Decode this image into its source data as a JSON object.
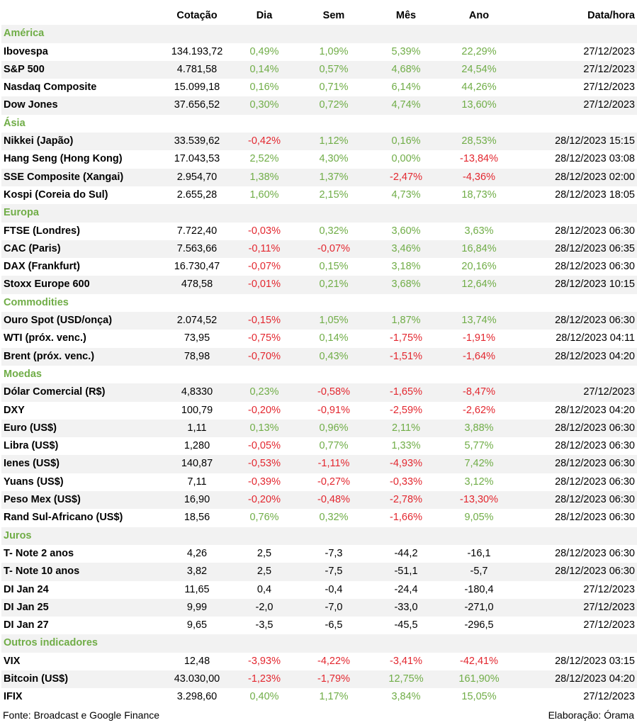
{
  "colors": {
    "positive": "#70ad47",
    "negative": "#e3272f",
    "section": "#70ad47",
    "stripe": "#f2f2f2"
  },
  "headers": [
    "",
    "Cotação",
    "Dia",
    "Sem",
    "Mês",
    "Ano",
    "Data/hora"
  ],
  "sections": [
    {
      "title": "América",
      "rows": [
        {
          "name": "Ibovespa",
          "cotacao": "134.193,72",
          "dia": "0,49%",
          "sem": "1,09%",
          "mes": "5,39%",
          "ano": "22,29%",
          "data": "27/12/2023"
        },
        {
          "name": "S&P 500",
          "cotacao": "4.781,58",
          "dia": "0,14%",
          "sem": "0,57%",
          "mes": "4,68%",
          "ano": "24,54%",
          "data": "27/12/2023"
        },
        {
          "name": "Nasdaq Composite",
          "cotacao": "15.099,18",
          "dia": "0,16%",
          "sem": "0,71%",
          "mes": "6,14%",
          "ano": "44,26%",
          "data": "27/12/2023"
        },
        {
          "name": "Dow Jones",
          "cotacao": "37.656,52",
          "dia": "0,30%",
          "sem": "0,72%",
          "mes": "4,74%",
          "ano": "13,60%",
          "data": "27/12/2023"
        }
      ]
    },
    {
      "title": "Ásia",
      "rows": [
        {
          "name": "Nikkei (Japão)",
          "cotacao": "33.539,62",
          "dia": "-0,42%",
          "sem": "1,12%",
          "mes": "0,16%",
          "ano": "28,53%",
          "data": "28/12/2023 15:15"
        },
        {
          "name": "Hang Seng (Hong Kong)",
          "cotacao": "17.043,53",
          "dia": "2,52%",
          "sem": "4,30%",
          "mes": "0,00%",
          "ano": "-13,84%",
          "data": "28/12/2023 03:08"
        },
        {
          "name": "SSE Composite (Xangai)",
          "cotacao": "2.954,70",
          "dia": "1,38%",
          "sem": "1,37%",
          "mes": "-2,47%",
          "ano": "-4,36%",
          "data": "28/12/2023 02:00"
        },
        {
          "name": "Kospi (Coreia do Sul)",
          "cotacao": "2.655,28",
          "dia": "1,60%",
          "sem": "2,15%",
          "mes": "4,73%",
          "ano": "18,73%",
          "data": "28/12/2023 18:05"
        }
      ]
    },
    {
      "title": "Europa",
      "rows": [
        {
          "name": "FTSE (Londres)",
          "cotacao": "7.722,40",
          "dia": "-0,03%",
          "sem": "0,32%",
          "mes": "3,60%",
          "ano": "3,63%",
          "data": "28/12/2023 06:30"
        },
        {
          "name": "CAC (Paris)",
          "cotacao": "7.563,66",
          "dia": "-0,11%",
          "sem": "-0,07%",
          "mes": "3,46%",
          "ano": "16,84%",
          "data": "28/12/2023 06:35"
        },
        {
          "name": "DAX (Frankfurt)",
          "cotacao": "16.730,47",
          "dia": "-0,07%",
          "sem": "0,15%",
          "mes": "3,18%",
          "ano": "20,16%",
          "data": "28/12/2023 06:30"
        },
        {
          "name": "Stoxx Europe 600",
          "cotacao": "478,58",
          "dia": "-0,01%",
          "sem": "0,21%",
          "mes": "3,68%",
          "ano": "12,64%",
          "data": "28/12/2023 10:15"
        }
      ]
    },
    {
      "title": "Commodities",
      "rows": [
        {
          "name": "Ouro Spot (USD/onça)",
          "cotacao": "2.074,52",
          "dia": "-0,15%",
          "sem": "1,05%",
          "mes": "1,87%",
          "ano": "13,74%",
          "data": "28/12/2023 06:30"
        },
        {
          "name": "WTI (próx. venc.)",
          "cotacao": "73,95",
          "dia": "-0,75%",
          "sem": "0,14%",
          "mes": "-1,75%",
          "ano": "-1,91%",
          "data": "28/12/2023 04:11"
        },
        {
          "name": "Brent (próx. venc.)",
          "cotacao": "78,98",
          "dia": "-0,70%",
          "sem": "0,43%",
          "mes": "-1,51%",
          "ano": "-1,64%",
          "data": "28/12/2023 04:20"
        }
      ]
    },
    {
      "title": "Moedas",
      "rows": [
        {
          "name": "Dólar Comercial (R$)",
          "cotacao": "4,8330",
          "dia": "0,23%",
          "sem": "-0,58%",
          "mes": "-1,65%",
          "ano": "-8,47%",
          "data": "27/12/2023"
        },
        {
          "name": "DXY",
          "cotacao": "100,79",
          "dia": "-0,20%",
          "sem": "-0,91%",
          "mes": "-2,59%",
          "ano": "-2,62%",
          "data": "28/12/2023 04:20"
        },
        {
          "name": "Euro (US$)",
          "cotacao": "1,11",
          "dia": "0,13%",
          "sem": "0,96%",
          "mes": "2,11%",
          "ano": "3,88%",
          "data": "28/12/2023 06:30"
        },
        {
          "name": "Libra (US$)",
          "cotacao": "1,280",
          "dia": "-0,05%",
          "sem": "0,77%",
          "mes": "1,33%",
          "ano": "5,77%",
          "data": "28/12/2023 06:30"
        },
        {
          "name": "Ienes (US$)",
          "cotacao": "140,87",
          "dia": "-0,53%",
          "sem": "-1,11%",
          "mes": "-4,93%",
          "ano": "7,42%",
          "data": "28/12/2023 06:30"
        },
        {
          "name": "Yuans (US$)",
          "cotacao": "7,11",
          "dia": "-0,39%",
          "sem": "-0,27%",
          "mes": "-0,33%",
          "ano": "3,12%",
          "data": "28/12/2023 06:30"
        },
        {
          "name": "Peso Mex (US$)",
          "cotacao": "16,90",
          "dia": "-0,20%",
          "sem": "-0,48%",
          "mes": "-2,78%",
          "ano": "-13,30%",
          "data": "28/12/2023 06:30"
        },
        {
          "name": "Rand Sul-Africano (US$)",
          "cotacao": "18,56",
          "dia": "0,76%",
          "sem": "0,32%",
          "mes": "-1,66%",
          "ano": "9,05%",
          "data": "28/12/2023 06:30"
        }
      ]
    },
    {
      "title": "Juros",
      "rows": [
        {
          "name": "T- Note 2 anos",
          "cotacao": "4,26",
          "dia": "2,5",
          "sem": "-7,3",
          "mes": "-44,2",
          "ano": "-16,1",
          "data": "28/12/2023 06:30",
          "neutral": true
        },
        {
          "name": "T- Note 10 anos",
          "cotacao": "3,82",
          "dia": "2,5",
          "sem": "-7,5",
          "mes": "-51,1",
          "ano": "-5,7",
          "data": "28/12/2023 06:30",
          "neutral": true
        },
        {
          "name": "DI Jan 24",
          "cotacao": "11,65",
          "dia": "0,4",
          "sem": "-0,4",
          "mes": "-24,4",
          "ano": "-180,4",
          "data": "27/12/2023",
          "neutral": true
        },
        {
          "name": "DI Jan 25",
          "cotacao": "9,99",
          "dia": "-2,0",
          "sem": "-7,0",
          "mes": "-33,0",
          "ano": "-271,0",
          "data": "27/12/2023",
          "neutral": true
        },
        {
          "name": "DI Jan 27",
          "cotacao": "9,65",
          "dia": "-3,5",
          "sem": "-6,5",
          "mes": "-45,5",
          "ano": "-296,5",
          "data": "27/12/2023",
          "neutral": true
        }
      ]
    },
    {
      "title": "Outros indicadores",
      "rows": [
        {
          "name": "VIX",
          "cotacao": "12,48",
          "dia": "-3,93%",
          "sem": "-4,22%",
          "mes": "-3,41%",
          "ano": "-42,41%",
          "data": "28/12/2023 03:15"
        },
        {
          "name": "Bitcoin (US$)",
          "cotacao": "43.030,00",
          "dia": "-1,23%",
          "sem": "-1,79%",
          "mes": "12,75%",
          "ano": "161,90%",
          "data": "28/12/2023 04:20"
        },
        {
          "name": "IFIX",
          "cotacao": "3.298,60",
          "dia": "0,40%",
          "sem": "1,17%",
          "mes": "3,84%",
          "ano": "15,05%",
          "data": "27/12/2023"
        }
      ]
    }
  ],
  "footer": {
    "source": "Fonte: Broadcast e Google Finance",
    "credit": "Elaboração: Órama"
  }
}
